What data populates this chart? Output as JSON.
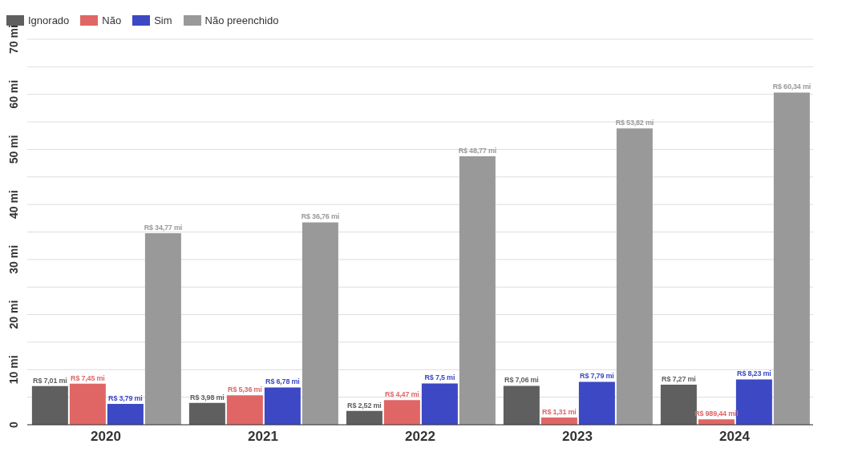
{
  "chart_data": {
    "type": "bar",
    "categories": [
      "2020",
      "2021",
      "2022",
      "2023",
      "2024"
    ],
    "series": [
      {
        "name": "Ignorado",
        "color": "#5f5f5f",
        "values": [
          7.01,
          3.98,
          2.52,
          7.06,
          7.27
        ],
        "value_labels": [
          "R$ 7,01 mi",
          "R$ 3,98 mi",
          "R$ 2,52 mi",
          "R$ 7,06 mi",
          "R$ 7,27 mi"
        ]
      },
      {
        "name": "Não",
        "color": "#e06666",
        "values": [
          7.45,
          5.36,
          4.47,
          1.31,
          1
        ],
        "value_labels": [
          "R$ 7,45 mi",
          "R$ 5,36 mi",
          "R$ 4,47 mi",
          "R$ 1,31 mi",
          "R$ 989,44 mil"
        ]
      },
      {
        "name": "Sim",
        "color": "#3c48c4",
        "values": [
          3.79,
          6.78,
          7.5,
          7.79,
          8.23
        ],
        "value_labels": [
          "R$ 3,79 mi",
          "R$ 6,78 mi",
          "R$ 7,5 mi",
          "R$ 7,79 mi",
          "R$ 8,23 mi"
        ]
      },
      {
        "name": "Não preenchido",
        "color": "#999999",
        "values": [
          34.77,
          36.76,
          48.77,
          53.82,
          60.34
        ],
        "value_labels": [
          "R$ 34,77 mi",
          "R$ 36,76 mi",
          "R$ 48,77 mi",
          "R$ 53,82 mi",
          "R$ 60,34 mi"
        ]
      }
    ],
    "ylim": [
      0,
      70
    ],
    "yticks": [
      0,
      {
        "value": 5,
        "label": null
      },
      {
        "value": 10,
        "label": "10 mi"
      },
      {
        "value": 15,
        "label": null
      },
      {
        "value": 20,
        "label": "20 mi"
      },
      {
        "value": 25,
        "label": null
      },
      {
        "value": 30,
        "label": "30 mi"
      },
      {
        "value": 35,
        "label": null
      },
      {
        "value": 40,
        "label": "40 mi"
      },
      {
        "value": 45,
        "label": null
      },
      {
        "value": 50,
        "label": "50 mi"
      },
      {
        "value": 55,
        "label": null
      },
      {
        "value": 60,
        "label": "60 mi"
      },
      {
        "value": 65,
        "label": null
      },
      {
        "value": 70,
        "label": "70 mi"
      }
    ],
    "grid": "y",
    "legend": "top left"
  }
}
